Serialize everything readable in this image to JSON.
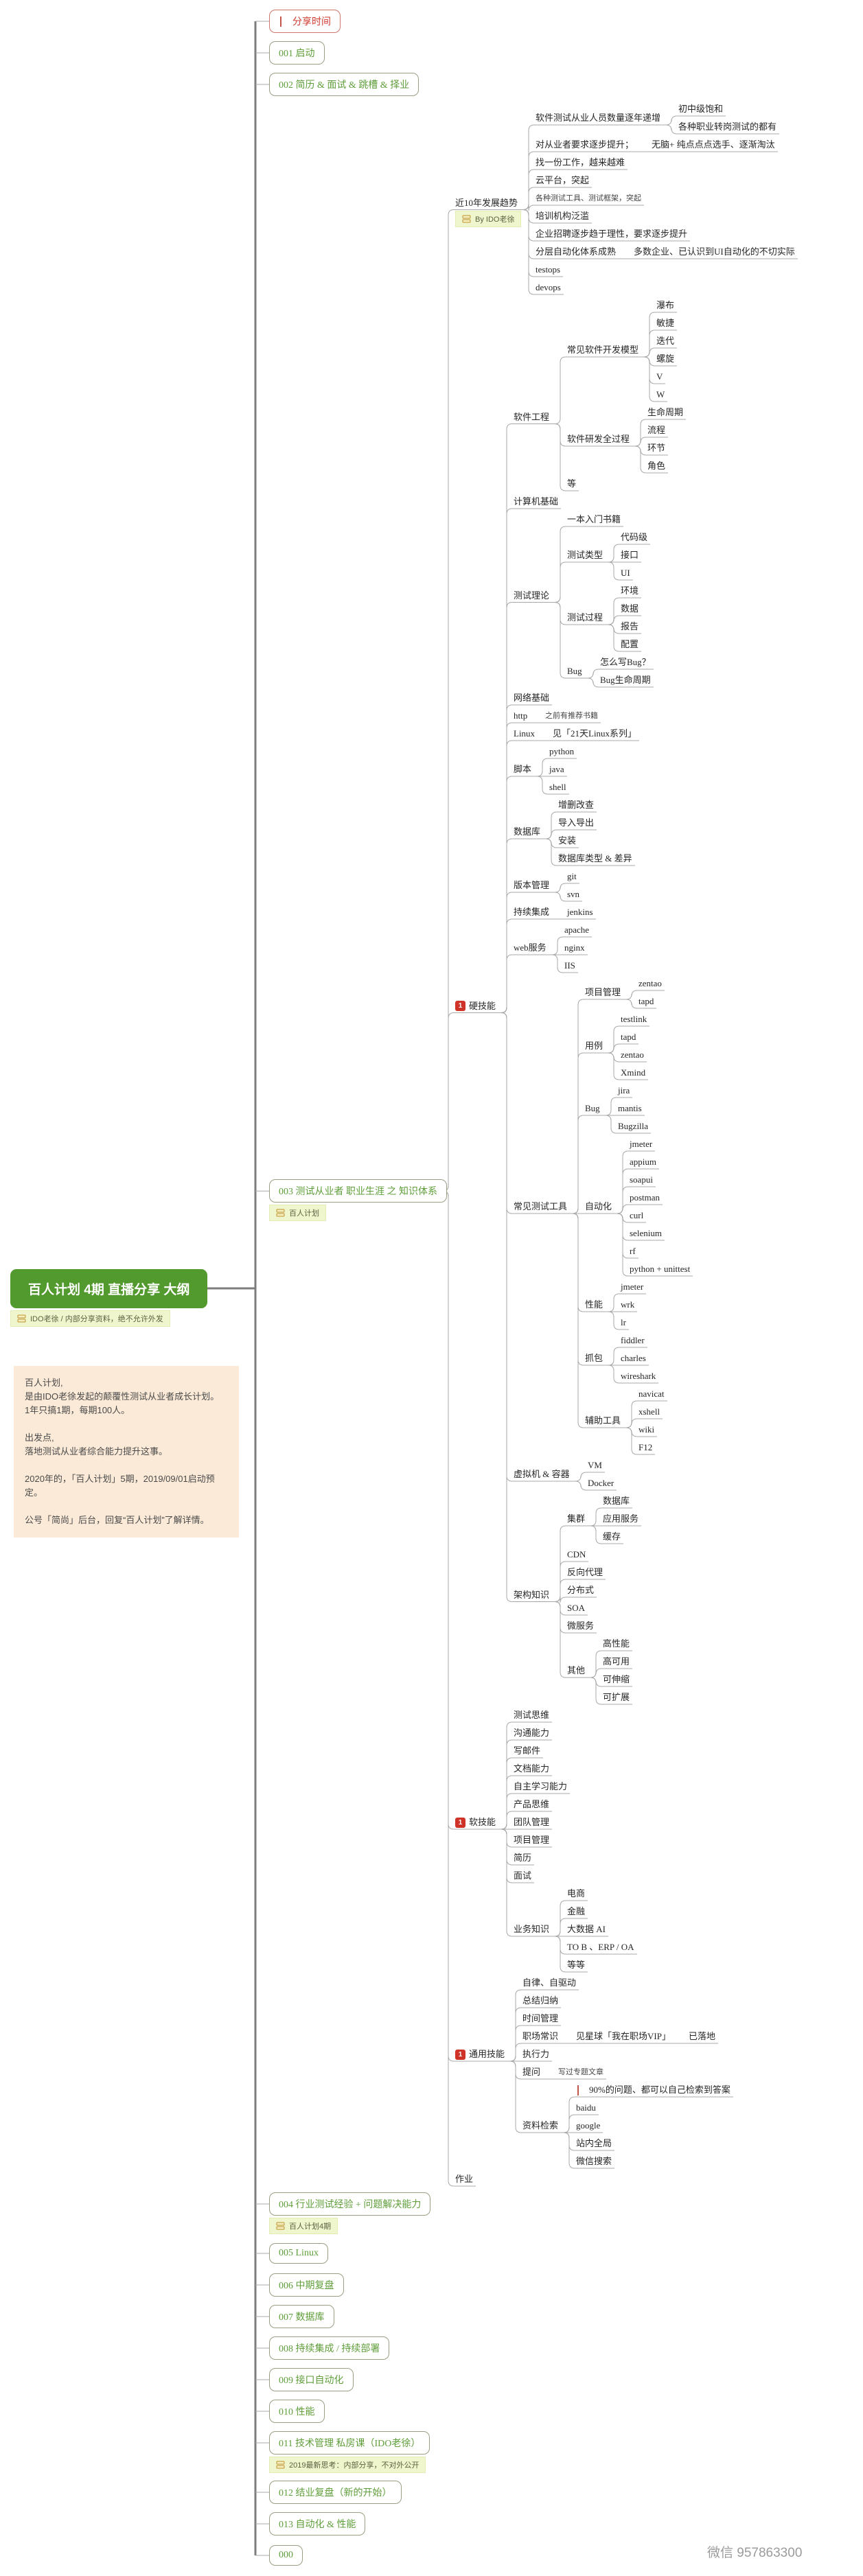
{
  "colors": {
    "root_bg": "#52992e",
    "topic_text": "#5f9e3a",
    "topic_border": "#98a084",
    "red_accent": "#cf3328",
    "label_bg": "#eff5cc",
    "note_bg": "#fbead7",
    "line": "#a8a8a8",
    "spine": "#7d7d7d",
    "watermark_text_color": "#9b9b9b"
  },
  "watermark": {
    "text": "微信 957863300"
  },
  "note": {
    "lines": [
      "百人计划,",
      "是由IDO老徐发起的颠覆性测试从业者成长计划。",
      "1年只搞1期，每期100人。",
      "",
      "出发点,",
      "落地测试从业者综合能力提升这事。",
      "",
      "2020年的，「百人计划」5期，2019/09/01启动预定。",
      "",
      "公号「简尚」后台，回复“百人计划”了解详情。"
    ]
  },
  "tree": {
    "t": "百人计划 4期 直播分享 大纲",
    "type": "root",
    "label": "IDO老徐 / 内部分享资料，绝不允许外发",
    "children": [
      {
        "t": "分享时间",
        "type": "topic",
        "variant": "red",
        "flag": true
      },
      {
        "t": "001 启动",
        "type": "topic"
      },
      {
        "t": "002 简历 & 面试 & 跳槽 & 择业",
        "type": "topic"
      },
      {
        "t": "003 测试从业者 职业生涯 之 知识体系",
        "type": "topic",
        "label": "百人计划",
        "children": [
          {
            "t": "近10年发展趋势",
            "label": "By IDO老徐",
            "children": [
              {
                "t": "软件测试从业人员数量逐年递增",
                "children": [
                  "初中级饱和",
                  "各种职业转岗测试的都有"
                ]
              },
              {
                "t": "对从业者要求逐步提升；",
                "children": [
                  "无脑+ 纯点点点选手、逐渐淘汰"
                ]
              },
              "找一份工作，越来越难",
              "云平台，突起",
              {
                "t": "各种测试工具、测试框架，突起",
                "type": "anno"
              },
              "培训机构泛滥",
              "企业招聘逐步趋于理性，要求逐步提升",
              {
                "t": "分层自动化体系成熟",
                "children": [
                  "多数企业、已认识到UI自动化的不切实际"
                ]
              },
              "testops",
              "devops"
            ]
          },
          {
            "t": "硬技能",
            "badge": "1",
            "children": [
              {
                "t": "软件工程",
                "children": [
                  {
                    "t": "常见软件开发模型",
                    "children": [
                      "瀑布",
                      "敏捷",
                      "迭代",
                      "螺旋",
                      "V",
                      "W"
                    ]
                  },
                  {
                    "t": "软件研发全过程",
                    "children": [
                      "生命周期",
                      "流程",
                      "环节",
                      "角色"
                    ]
                  },
                  "等"
                ]
              },
              "计算机基础",
              {
                "t": "测试理论",
                "children": [
                  "一本入门书籍",
                  {
                    "t": "测试类型",
                    "children": [
                      "代码级",
                      "接口",
                      "UI"
                    ]
                  },
                  {
                    "t": "测试过程",
                    "children": [
                      "环境",
                      "数据",
                      "报告",
                      "配置"
                    ]
                  },
                  {
                    "t": "Bug",
                    "children": [
                      "怎么写Bug？",
                      "Bug生命周期"
                    ]
                  }
                ]
              },
              "网络基础",
              {
                "t": "http",
                "children": [
                  {
                    "t": "之前有推荐书籍",
                    "type": "anno"
                  }
                ]
              },
              {
                "t": "Linux",
                "children": [
                  "见「21天Linux系列」"
                ]
              },
              {
                "t": "脚本",
                "children": [
                  "python",
                  "java",
                  "shell"
                ]
              },
              {
                "t": "数据库",
                "children": [
                  "增删改查",
                  "导入导出",
                  "安装",
                  "数据库类型 & 差异"
                ]
              },
              {
                "t": "版本管理",
                "children": [
                  "git",
                  "svn"
                ]
              },
              {
                "t": "持续集成",
                "children": [
                  "jenkins"
                ]
              },
              {
                "t": "web服务",
                "children": [
                  "apache",
                  "nginx",
                  "IIS"
                ]
              },
              {
                "t": "常见测试工具",
                "children": [
                  {
                    "t": "项目管理",
                    "children": [
                      "zentao",
                      "tapd"
                    ]
                  },
                  {
                    "t": "用例",
                    "children": [
                      "testlink",
                      "tapd",
                      "zentao",
                      "Xmind"
                    ]
                  },
                  {
                    "t": "Bug",
                    "children": [
                      "jira",
                      "mantis",
                      "Bugzilla"
                    ]
                  },
                  {
                    "t": "自动化",
                    "children": [
                      "jmeter",
                      "appium",
                      "soapui",
                      "postman",
                      "curl",
                      "selenium",
                      "rf",
                      "python + unittest"
                    ]
                  },
                  {
                    "t": "性能",
                    "children": [
                      "jmeter",
                      "wrk",
                      "lr"
                    ]
                  },
                  {
                    "t": "抓包",
                    "children": [
                      "fiddler",
                      "charles",
                      "wireshark"
                    ]
                  },
                  {
                    "t": "辅助工具",
                    "children": [
                      "navicat",
                      "xshell",
                      "wiki",
                      "F12"
                    ]
                  }
                ]
              },
              {
                "t": "虚拟机 & 容器",
                "children": [
                  "VM",
                  "Docker"
                ]
              },
              {
                "t": "架构知识",
                "children": [
                  {
                    "t": "集群",
                    "children": [
                      "数据库",
                      "应用服务",
                      "缓存"
                    ]
                  },
                  "CDN",
                  "反向代理",
                  "分布式",
                  "SOA",
                  "微服务",
                  {
                    "t": "其他",
                    "children": [
                      "高性能",
                      "高可用",
                      "可伸缩",
                      "可扩展"
                    ]
                  }
                ]
              }
            ]
          },
          {
            "t": "软技能",
            "badge": "1",
            "children": [
              "测试思维",
              "沟通能力",
              "写邮件",
              "文档能力",
              "自主学习能力",
              "产品思维",
              "团队管理",
              "项目管理",
              "简历",
              "面试",
              {
                "t": "业务知识",
                "children": [
                  "电商",
                  "金融",
                  "大数据 AI",
                  "TO B 、ERP / OA",
                  "等等"
                ]
              }
            ]
          },
          {
            "t": "通用技能",
            "badge": "1",
            "children": [
              "自律、自驱动",
              "总结归纳",
              "时间管理",
              {
                "t": "职场常识",
                "children": [
                  {
                    "t": "见星球「我在职场VIP」",
                    "children": [
                      "已落地"
                    ]
                  }
                ]
              },
              "执行力",
              {
                "t": "提问",
                "children": [
                  {
                    "t": "写过专题文章",
                    "type": "anno"
                  }
                ]
              },
              {
                "t": "资料检索",
                "children": [
                  {
                    "t": "90%的问题、都可以自己检索到答案",
                    "flag": true
                  },
                  "baidu",
                  "google",
                  "站内全局",
                  "微信搜索"
                ]
              }
            ]
          },
          "作业"
        ]
      },
      {
        "t": "004 行业测试经验 + 问题解决能力",
        "type": "topic",
        "label": "百人计划4期"
      },
      {
        "t": "005 Linux",
        "type": "topic"
      },
      {
        "t": "006 中期复盘",
        "type": "topic"
      },
      {
        "t": "007 数据库",
        "type": "topic"
      },
      {
        "t": "008 持续集成 / 持续部署",
        "type": "topic"
      },
      {
        "t": "009 接口自动化",
        "type": "topic"
      },
      {
        "t": "010 性能",
        "type": "topic"
      },
      {
        "t": "011 技术管理 私房课（IDO老徐）",
        "type": "topic",
        "label": "2019最新思考：内部分享，不对外公开"
      },
      {
        "t": "012 结业复盘（新的开始）",
        "type": "topic"
      },
      {
        "t": "013 自动化 & 性能",
        "type": "topic"
      },
      {
        "t": "000",
        "type": "topic"
      }
    ]
  }
}
